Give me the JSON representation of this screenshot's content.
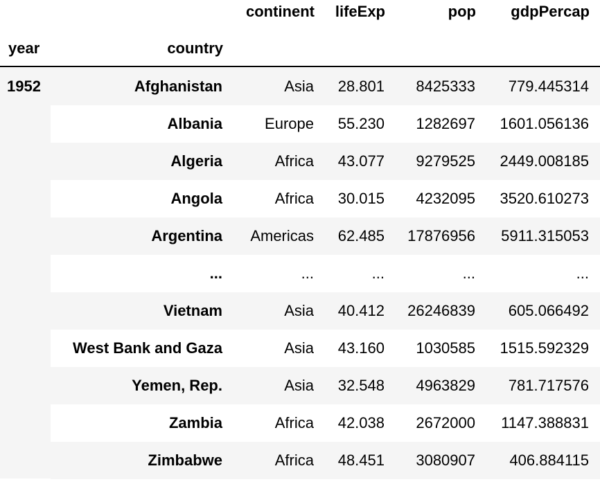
{
  "table": {
    "columns": [
      "continent",
      "lifeExp",
      "pop",
      "gdpPercap"
    ],
    "index_names": [
      "year",
      "country"
    ],
    "year": "1952",
    "rows": [
      {
        "country": "Afghanistan",
        "continent": "Asia",
        "lifeExp": "28.801",
        "pop": "8425333",
        "gdpPercap": "779.445314"
      },
      {
        "country": "Albania",
        "continent": "Europe",
        "lifeExp": "55.230",
        "pop": "1282697",
        "gdpPercap": "1601.056136"
      },
      {
        "country": "Algeria",
        "continent": "Africa",
        "lifeExp": "43.077",
        "pop": "9279525",
        "gdpPercap": "2449.008185"
      },
      {
        "country": "Angola",
        "continent": "Africa",
        "lifeExp": "30.015",
        "pop": "4232095",
        "gdpPercap": "3520.610273"
      },
      {
        "country": "Argentina",
        "continent": "Americas",
        "lifeExp": "62.485",
        "pop": "17876956",
        "gdpPercap": "5911.315053"
      },
      {
        "country": "...",
        "continent": "...",
        "lifeExp": "...",
        "pop": "...",
        "gdpPercap": "..."
      },
      {
        "country": "Vietnam",
        "continent": "Asia",
        "lifeExp": "40.412",
        "pop": "26246839",
        "gdpPercap": "605.066492"
      },
      {
        "country": "West Bank and Gaza",
        "continent": "Asia",
        "lifeExp": "43.160",
        "pop": "1030585",
        "gdpPercap": "1515.592329"
      },
      {
        "country": "Yemen, Rep.",
        "continent": "Asia",
        "lifeExp": "32.548",
        "pop": "4963829",
        "gdpPercap": "781.717576"
      },
      {
        "country": "Zambia",
        "continent": "Africa",
        "lifeExp": "42.038",
        "pop": "2672000",
        "gdpPercap": "1147.388831"
      },
      {
        "country": "Zimbabwe",
        "continent": "Africa",
        "lifeExp": "48.451",
        "pop": "3080907",
        "gdpPercap": "406.884115"
      }
    ]
  }
}
